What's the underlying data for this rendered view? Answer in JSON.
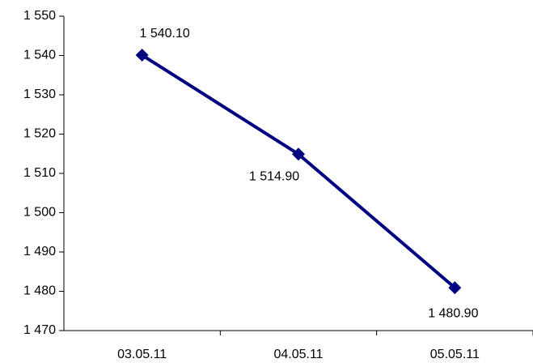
{
  "chart_data": {
    "type": "line",
    "categories": [
      "03.05.11",
      "04.05.11",
      "05.05.11"
    ],
    "series": [
      {
        "values": [
          1540.1,
          1514.9,
          1480.9
        ],
        "labels": [
          "1 540.10",
          "1 514.90",
          "1 480.90"
        ],
        "color": "#000080",
        "marker": "diamond"
      }
    ],
    "ylim": [
      1470,
      1550
    ],
    "yticks": [
      1470,
      1480,
      1490,
      1500,
      1510,
      1520,
      1530,
      1540,
      1550
    ],
    "ytick_labels": [
      "1 470",
      "1 480",
      "1 490",
      "1 500",
      "1 510",
      "1 520",
      "1 530",
      "1 540",
      "1 550"
    ],
    "grid": false,
    "legend": "none"
  }
}
